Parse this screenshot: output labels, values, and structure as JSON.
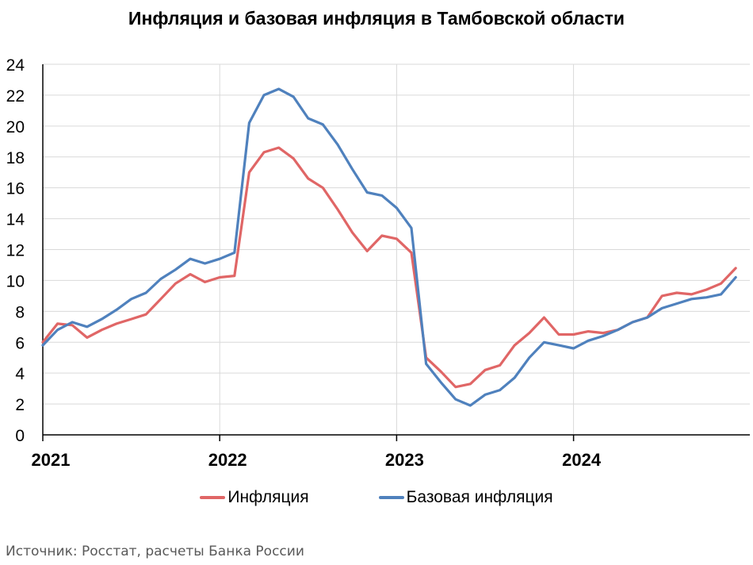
{
  "chart_data": {
    "type": "line",
    "title": "Инфляция и базовая инфляция в Тамбовской области",
    "x_ticks": [
      "2021",
      "2022",
      "2023",
      "2024"
    ],
    "ylim": [
      0,
      24
    ],
    "y_ticks": [
      0,
      2,
      4,
      6,
      8,
      10,
      12,
      14,
      16,
      18,
      20,
      22,
      24
    ],
    "grid": true,
    "legend_position": "bottom",
    "x_start_year": 2021,
    "series": [
      {
        "name": "Инфляция",
        "color": "#E06666",
        "values": [
          6.0,
          7.2,
          7.1,
          6.3,
          6.8,
          7.2,
          7.5,
          7.8,
          8.8,
          9.8,
          10.4,
          9.9,
          10.2,
          10.3,
          17.0,
          18.3,
          18.6,
          17.9,
          16.6,
          16.0,
          14.6,
          13.1,
          11.9,
          12.9,
          12.7,
          11.8,
          5.0,
          4.1,
          3.1,
          3.3,
          4.2,
          4.5,
          5.8,
          6.6,
          7.6,
          6.5,
          6.5,
          6.7,
          6.6,
          6.8,
          7.3,
          7.6,
          9.0,
          9.2,
          9.1,
          9.4,
          9.8,
          10.8
        ]
      },
      {
        "name": "Базовая инфляция",
        "color": "#4F81BD",
        "values": [
          5.8,
          6.8,
          7.3,
          7.0,
          7.5,
          8.1,
          8.8,
          9.2,
          10.1,
          10.7,
          11.4,
          11.1,
          11.4,
          11.8,
          20.2,
          22.0,
          22.4,
          21.9,
          20.5,
          20.1,
          18.8,
          17.2,
          15.7,
          15.5,
          14.7,
          13.4,
          4.6,
          3.4,
          2.3,
          1.9,
          2.6,
          2.9,
          3.7,
          5.0,
          6.0,
          5.8,
          5.6,
          6.1,
          6.4,
          6.8,
          7.3,
          7.6,
          8.2,
          8.5,
          8.8,
          8.9,
          9.1,
          10.2
        ]
      }
    ]
  },
  "source_text": "Источник: Росстат, расчеты Банка России"
}
